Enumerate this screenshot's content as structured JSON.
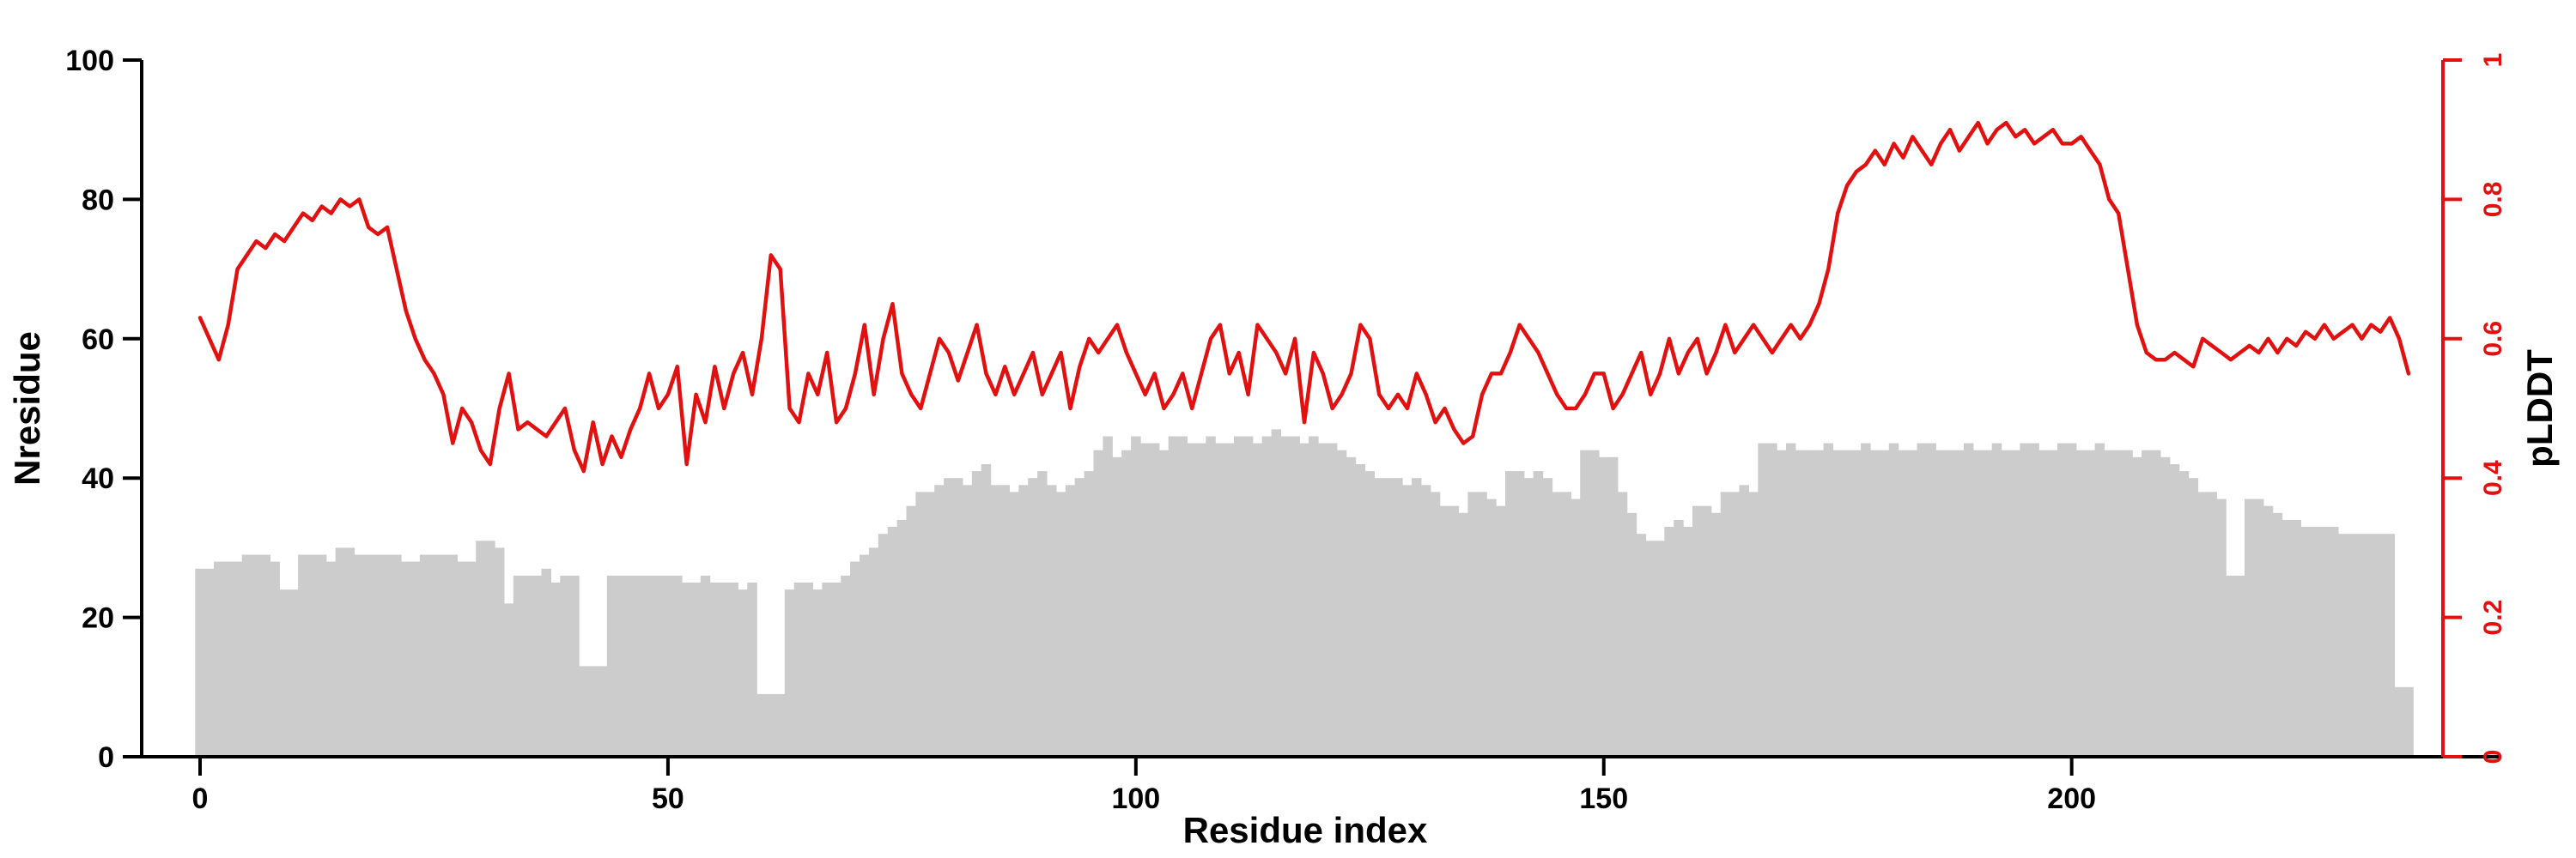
{
  "figure": {
    "background": "#ffffff",
    "bar_color": "#cccccc",
    "line_color": "#e31010"
  },
  "axes": {
    "x": {
      "label": "Residue index",
      "ticks": [
        0,
        50,
        100,
        150,
        200
      ],
      "color": "#000000"
    },
    "y_left": {
      "label": "Nresidue",
      "ticks": [
        0,
        20,
        40,
        60,
        80,
        100
      ],
      "range": [
        0,
        100
      ],
      "color": "#000000"
    },
    "y_right": {
      "label": "pLDDT",
      "ticks": [
        0,
        0.2,
        0.4,
        0.6,
        0.8,
        1
      ],
      "tick_labels": [
        "0",
        "0.2",
        "0.4",
        "0.6",
        "0.8",
        "1"
      ],
      "range": [
        0,
        1
      ],
      "color": "#e31010"
    }
  },
  "chart_data": {
    "type": "bar+line",
    "title": "",
    "xlabel": "Residue index",
    "ylabel_left": "Nresidue",
    "ylabel_right": "pLDDT",
    "x_start": 0,
    "x_step": 1,
    "x_ticks": [
      0,
      50,
      100,
      150,
      200
    ],
    "ylim_left": [
      0,
      100
    ],
    "ylim_right": [
      0,
      1
    ],
    "grid": false,
    "legend": "none",
    "series": [
      {
        "name": "Nresidue",
        "type": "bar",
        "axis": "left",
        "color": "#cccccc",
        "values": [
          27,
          27,
          28,
          28,
          28,
          29,
          29,
          29,
          28,
          24,
          24,
          29,
          29,
          29,
          28,
          30,
          30,
          29,
          29,
          29,
          29,
          29,
          28,
          28,
          29,
          29,
          29,
          29,
          28,
          28,
          31,
          31,
          30,
          22,
          26,
          26,
          26,
          27,
          25,
          26,
          26,
          13,
          13,
          13,
          26,
          26,
          26,
          26,
          26,
          26,
          26,
          26,
          25,
          25,
          26,
          25,
          25,
          25,
          24,
          25,
          9,
          9,
          9,
          24,
          25,
          25,
          24,
          25,
          25,
          26,
          28,
          29,
          30,
          32,
          33,
          34,
          36,
          38,
          38,
          39,
          40,
          40,
          39,
          41,
          42,
          39,
          39,
          38,
          39,
          40,
          41,
          39,
          38,
          39,
          40,
          41,
          44,
          46,
          43,
          44,
          46,
          45,
          45,
          44,
          46,
          46,
          45,
          45,
          46,
          45,
          45,
          46,
          46,
          45,
          46,
          47,
          46,
          46,
          45,
          46,
          45,
          45,
          44,
          43,
          42,
          41,
          40,
          40,
          40,
          39,
          40,
          39,
          38,
          36,
          36,
          35,
          38,
          38,
          37,
          36,
          41,
          41,
          40,
          41,
          40,
          38,
          38,
          37,
          44,
          44,
          43,
          43,
          38,
          35,
          32,
          31,
          31,
          33,
          34,
          33,
          36,
          36,
          35,
          38,
          38,
          39,
          38,
          45,
          45,
          44,
          45,
          44,
          44,
          44,
          45,
          44,
          44,
          44,
          45,
          44,
          44,
          45,
          44,
          44,
          45,
          45,
          44,
          44,
          44,
          45,
          44,
          44,
          45,
          44,
          44,
          45,
          45,
          44,
          44,
          45,
          45,
          44,
          44,
          45,
          44,
          44,
          44,
          43,
          44,
          44,
          43,
          42,
          41,
          40,
          38,
          38,
          37,
          26,
          26,
          37,
          37,
          36,
          35,
          34,
          34,
          33,
          33,
          33,
          33,
          32,
          32,
          32,
          32,
          32,
          32,
          10,
          10
        ]
      },
      {
        "name": "pLDDT",
        "type": "line",
        "axis": "right",
        "color": "#e31010",
        "values": [
          0.63,
          0.6,
          0.57,
          0.62,
          0.7,
          0.72,
          0.74,
          0.73,
          0.75,
          0.74,
          0.76,
          0.78,
          0.77,
          0.79,
          0.78,
          0.8,
          0.79,
          0.8,
          0.76,
          0.75,
          0.76,
          0.7,
          0.64,
          0.6,
          0.57,
          0.55,
          0.52,
          0.45,
          0.5,
          0.48,
          0.44,
          0.42,
          0.5,
          0.55,
          0.47,
          0.48,
          0.47,
          0.46,
          0.48,
          0.5,
          0.44,
          0.41,
          0.48,
          0.42,
          0.46,
          0.43,
          0.47,
          0.5,
          0.55,
          0.5,
          0.52,
          0.56,
          0.42,
          0.52,
          0.48,
          0.56,
          0.5,
          0.55,
          0.58,
          0.52,
          0.6,
          0.72,
          0.7,
          0.5,
          0.48,
          0.55,
          0.52,
          0.58,
          0.48,
          0.5,
          0.55,
          0.62,
          0.52,
          0.6,
          0.65,
          0.55,
          0.52,
          0.5,
          0.55,
          0.6,
          0.58,
          0.54,
          0.58,
          0.62,
          0.55,
          0.52,
          0.56,
          0.52,
          0.55,
          0.58,
          0.52,
          0.55,
          0.58,
          0.5,
          0.56,
          0.6,
          0.58,
          0.6,
          0.62,
          0.58,
          0.55,
          0.52,
          0.55,
          0.5,
          0.52,
          0.55,
          0.5,
          0.55,
          0.6,
          0.62,
          0.55,
          0.58,
          0.52,
          0.62,
          0.6,
          0.58,
          0.55,
          0.6,
          0.48,
          0.58,
          0.55,
          0.5,
          0.52,
          0.55,
          0.62,
          0.6,
          0.52,
          0.5,
          0.52,
          0.5,
          0.55,
          0.52,
          0.48,
          0.5,
          0.47,
          0.45,
          0.46,
          0.52,
          0.55,
          0.55,
          0.58,
          0.62,
          0.6,
          0.58,
          0.55,
          0.52,
          0.5,
          0.5,
          0.52,
          0.55,
          0.55,
          0.5,
          0.52,
          0.55,
          0.58,
          0.52,
          0.55,
          0.6,
          0.55,
          0.58,
          0.6,
          0.55,
          0.58,
          0.62,
          0.58,
          0.6,
          0.62,
          0.6,
          0.58,
          0.6,
          0.62,
          0.6,
          0.62,
          0.65,
          0.7,
          0.78,
          0.82,
          0.84,
          0.85,
          0.87,
          0.85,
          0.88,
          0.86,
          0.89,
          0.87,
          0.85,
          0.88,
          0.9,
          0.87,
          0.89,
          0.91,
          0.88,
          0.9,
          0.91,
          0.89,
          0.9,
          0.88,
          0.89,
          0.9,
          0.88,
          0.88,
          0.89,
          0.87,
          0.85,
          0.8,
          0.78,
          0.7,
          0.62,
          0.58,
          0.57,
          0.57,
          0.58,
          0.57,
          0.56,
          0.6,
          0.59,
          0.58,
          0.57,
          0.58,
          0.59,
          0.58,
          0.6,
          0.58,
          0.6,
          0.59,
          0.61,
          0.6,
          0.62,
          0.6,
          0.61,
          0.62,
          0.6,
          0.62,
          0.61,
          0.63,
          0.6,
          0.55
        ]
      }
    ]
  }
}
